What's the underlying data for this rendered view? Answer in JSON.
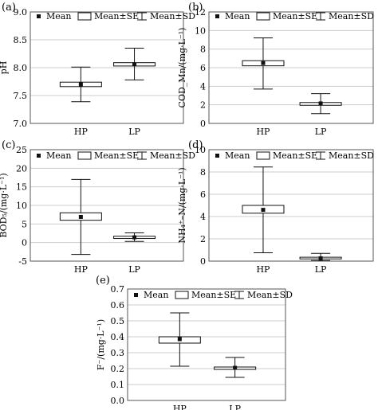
{
  "chart_data": [
    {
      "type": "box",
      "panel_label": "(a)",
      "ylabel": "pH",
      "ylim": [
        7.0,
        9.0
      ],
      "yticks": [
        "7.0",
        "7.5",
        "8.0",
        "8.5",
        "9.0"
      ],
      "categories": [
        "HP",
        "LP"
      ],
      "mean": [
        7.7,
        8.06
      ],
      "se": [
        [
          7.66,
          7.74
        ],
        [
          8.03,
          8.09
        ]
      ],
      "sd": [
        [
          7.39,
          8.01
        ],
        [
          7.78,
          8.35
        ]
      ],
      "grid": true
    },
    {
      "type": "box",
      "panel_label": "(b)",
      "ylabel": "COD_Mn/(mg·L⁻¹)",
      "ylim": [
        0,
        12
      ],
      "yticks": [
        "0",
        "2",
        "4",
        "6",
        "8",
        "10",
        "12"
      ],
      "categories": [
        "HP",
        "LP"
      ],
      "mean": [
        6.5,
        2.15
      ],
      "se": [
        [
          6.2,
          6.75
        ],
        [
          1.95,
          2.25
        ]
      ],
      "sd": [
        [
          3.7,
          9.2
        ],
        [
          1.05,
          3.2
        ]
      ],
      "grid": true
    },
    {
      "type": "box",
      "panel_label": "(c)",
      "ylabel": "BOD₅/(mg·L⁻¹)",
      "ylim": [
        -5,
        25
      ],
      "yticks": [
        "-5",
        "0",
        "5",
        "10",
        "15",
        "20",
        "25"
      ],
      "categories": [
        "HP",
        "LP"
      ],
      "mean": [
        6.9,
        1.4
      ],
      "se": [
        [
          6.0,
          8.0
        ],
        [
          1.1,
          1.7
        ]
      ],
      "sd": [
        [
          -3.2,
          17.0
        ],
        [
          0.3,
          2.6
        ]
      ],
      "grid": true
    },
    {
      "type": "box",
      "panel_label": "(d)",
      "ylabel": "NH₄⁺–N/(mg·L⁻¹)",
      "ylim": [
        0,
        10
      ],
      "yticks": [
        "0",
        "2",
        "4",
        "6",
        "8",
        "10"
      ],
      "categories": [
        "HP",
        "LP"
      ],
      "mean": [
        4.6,
        0.25
      ],
      "se": [
        [
          4.3,
          5.0
        ],
        [
          0.2,
          0.35
        ]
      ],
      "sd": [
        [
          0.75,
          8.45
        ],
        [
          0.05,
          0.7
        ]
      ],
      "grid": true
    },
    {
      "type": "box",
      "panel_label": "(e)",
      "ylabel": "F⁻/(mg·L⁻¹)",
      "ylim": [
        0.0,
        0.7
      ],
      "yticks": [
        "0.0",
        "0.1",
        "0.2",
        "0.3",
        "0.4",
        "0.5",
        "0.6",
        "0.7"
      ],
      "categories": [
        "HP",
        "LP"
      ],
      "mean": [
        0.385,
        0.205
      ],
      "se": [
        [
          0.36,
          0.4
        ],
        [
          0.195,
          0.21
        ]
      ],
      "sd": [
        [
          0.215,
          0.55
        ],
        [
          0.145,
          0.27
        ]
      ],
      "grid": true
    }
  ],
  "legend": {
    "mean": "Mean",
    "se": "Mean±SE",
    "sd": "Mean±SD",
    "placement": "top"
  },
  "colors": {
    "ink": "#111111",
    "grid": "#cccccc",
    "box_fill": "#ffffff"
  }
}
